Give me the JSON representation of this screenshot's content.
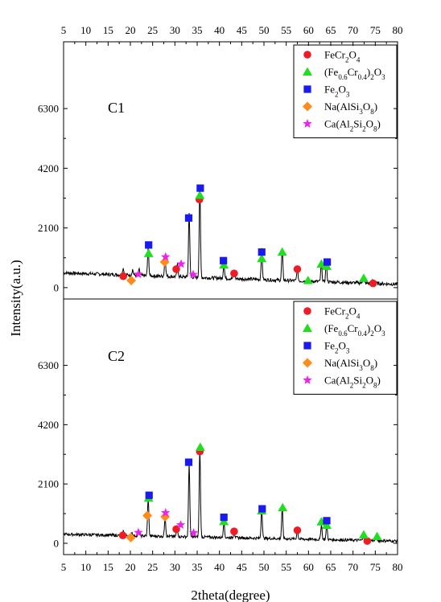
{
  "chart_data": {
    "type": "line",
    "xlabel": "2theta(degree)",
    "ylabel": "Intensity(a.u.)",
    "xlim": [
      5,
      80
    ],
    "ylim": [
      -400,
      8650
    ],
    "x_ticks": [
      "5",
      "10",
      "15",
      "20",
      "25",
      "30",
      "35",
      "40",
      "45",
      "50",
      "55",
      "60",
      "65",
      "70",
      "75",
      "80"
    ],
    "y_ticks": [
      "0",
      "2100",
      "4200",
      "6300"
    ],
    "legend_position": "top-right",
    "phases": [
      {
        "key": "fecr2o4",
        "marker": "circle",
        "color": "#ee1c24",
        "label_parts": [
          {
            "t": "FeCr"
          },
          {
            "t": "2",
            "s": "sub"
          },
          {
            "t": "O"
          },
          {
            "t": "4",
            "s": "sub"
          }
        ]
      },
      {
        "key": "fecr",
        "marker": "triangle",
        "color": "#22dd22",
        "label_parts": [
          {
            "t": "(Fe"
          },
          {
            "t": "0.6",
            "s": "sub"
          },
          {
            "t": "Cr"
          },
          {
            "t": "0.4",
            "s": "sub"
          },
          {
            "t": ")"
          },
          {
            "t": "2",
            "s": "sub"
          },
          {
            "t": "O"
          },
          {
            "t": "3",
            "s": "sub"
          }
        ]
      },
      {
        "key": "fe2o3",
        "marker": "square",
        "color": "#1a1aee",
        "label_parts": [
          {
            "t": "Fe"
          },
          {
            "t": "2",
            "s": "sub"
          },
          {
            "t": "O"
          },
          {
            "t": "3",
            "s": "sub"
          }
        ]
      },
      {
        "key": "nalsi",
        "marker": "diamond",
        "color": "#ff8c1a",
        "label_parts": [
          {
            "t": "Na(AlSi"
          },
          {
            "t": "3",
            "s": "sub"
          },
          {
            "t": "O"
          },
          {
            "t": "8",
            "s": "sub"
          },
          {
            "t": ")"
          }
        ]
      },
      {
        "key": "cal",
        "marker": "star",
        "color": "#ee22ee",
        "label_parts": [
          {
            "t": "Ca(Al"
          },
          {
            "t": "2",
            "s": "sub"
          },
          {
            "t": "Si"
          },
          {
            "t": "2",
            "s": "sub"
          },
          {
            "t": "O"
          },
          {
            "t": "8",
            "s": "sub"
          },
          {
            "t": ")"
          }
        ]
      }
    ],
    "panels": [
      {
        "name": "C1",
        "baseline": {
          "start": 520,
          "end": 120
        },
        "noise": 60,
        "peaks": [
          [
            18.4,
            250
          ],
          [
            20.5,
            200
          ],
          [
            22,
            200
          ],
          [
            24,
            1000
          ],
          [
            27.8,
            700
          ],
          [
            30.6,
            450
          ],
          [
            33.2,
            2300
          ],
          [
            35.6,
            3200
          ],
          [
            41,
            500
          ],
          [
            43.3,
            280
          ],
          [
            49.5,
            1050
          ],
          [
            54.1,
            1100
          ],
          [
            57.5,
            450
          ],
          [
            62.9,
            650
          ],
          [
            64,
            700
          ],
          [
            72.3,
            230
          ],
          [
            74.5,
            120
          ]
        ],
        "markers": [
          {
            "phase": "fecr2o4",
            "x": 18.4,
            "y": 400
          },
          {
            "phase": "fecr2o4",
            "x": 30.3,
            "y": 650
          },
          {
            "phase": "fecr2o4",
            "x": 35.5,
            "y": 3100
          },
          {
            "phase": "fecr2o4",
            "x": 43.3,
            "y": 500
          },
          {
            "phase": "fecr2o4",
            "x": 57.5,
            "y": 650
          },
          {
            "phase": "fecr2o4",
            "x": 74.5,
            "y": 150
          },
          {
            "phase": "fecr",
            "x": 24.1,
            "y": 1200
          },
          {
            "phase": "fecr",
            "x": 35.6,
            "y": 3250
          },
          {
            "phase": "fecr",
            "x": 41,
            "y": 800
          },
          {
            "phase": "fecr",
            "x": 49.5,
            "y": 1020
          },
          {
            "phase": "fecr",
            "x": 54.1,
            "y": 1250
          },
          {
            "phase": "fecr",
            "x": 59.9,
            "y": 250
          },
          {
            "phase": "fecr",
            "x": 62.9,
            "y": 830
          },
          {
            "phase": "fecr",
            "x": 64.1,
            "y": 750
          },
          {
            "phase": "fecr",
            "x": 72.4,
            "y": 330
          },
          {
            "phase": "fe2o3",
            "x": 24.1,
            "y": 1500
          },
          {
            "phase": "fe2o3",
            "x": 33.1,
            "y": 2450
          },
          {
            "phase": "fe2o3",
            "x": 35.7,
            "y": 3500
          },
          {
            "phase": "fe2o3",
            "x": 40.9,
            "y": 950
          },
          {
            "phase": "fe2o3",
            "x": 49.5,
            "y": 1250
          },
          {
            "phase": "fe2o3",
            "x": 64.2,
            "y": 900
          },
          {
            "phase": "nalsi",
            "x": 20.2,
            "y": 250
          },
          {
            "phase": "nalsi",
            "x": 27.7,
            "y": 900
          },
          {
            "phase": "cal",
            "x": 21.8,
            "y": 470
          },
          {
            "phase": "cal",
            "x": 27.9,
            "y": 1080
          },
          {
            "phase": "cal",
            "x": 31.4,
            "y": 830
          },
          {
            "phase": "cal",
            "x": 34.1,
            "y": 460
          }
        ]
      },
      {
        "name": "C2",
        "baseline": {
          "start": 320,
          "end": 80
        },
        "noise": 50,
        "peaks": [
          [
            18.4,
            150
          ],
          [
            20.3,
            130
          ],
          [
            22,
            140
          ],
          [
            24,
            1350
          ],
          [
            27.8,
            700
          ],
          [
            30.5,
            400
          ],
          [
            33.2,
            2650
          ],
          [
            35.6,
            3200
          ],
          [
            41,
            550
          ],
          [
            43.3,
            220
          ],
          [
            49.5,
            1050
          ],
          [
            54.1,
            1100
          ],
          [
            57.5,
            320
          ],
          [
            62.9,
            550
          ],
          [
            64.1,
            520
          ],
          [
            72.3,
            150
          ],
          [
            75.3,
            100
          ]
        ],
        "markers": [
          {
            "phase": "fecr2o4",
            "x": 18.3,
            "y": 280
          },
          {
            "phase": "fecr2o4",
            "x": 30.3,
            "y": 500
          },
          {
            "phase": "fecr2o4",
            "x": 35.6,
            "y": 3250
          },
          {
            "phase": "fecr2o4",
            "x": 43.3,
            "y": 420
          },
          {
            "phase": "fecr2o4",
            "x": 57.5,
            "y": 460
          },
          {
            "phase": "fecr2o4",
            "x": 73.2,
            "y": 80
          },
          {
            "phase": "fecr",
            "x": 24.1,
            "y": 1600
          },
          {
            "phase": "fecr",
            "x": 35.7,
            "y": 3400
          },
          {
            "phase": "fecr",
            "x": 41,
            "y": 770
          },
          {
            "phase": "fecr",
            "x": 49.5,
            "y": 1150
          },
          {
            "phase": "fecr",
            "x": 54.2,
            "y": 1260
          },
          {
            "phase": "fecr",
            "x": 62.9,
            "y": 760
          },
          {
            "phase": "fecr",
            "x": 64.1,
            "y": 640
          },
          {
            "phase": "fecr",
            "x": 72.4,
            "y": 300
          },
          {
            "phase": "fecr",
            "x": 75.4,
            "y": 240
          },
          {
            "phase": "fe2o3",
            "x": 24.2,
            "y": 1700
          },
          {
            "phase": "fe2o3",
            "x": 33.1,
            "y": 2870
          },
          {
            "phase": "fe2o3",
            "x": 41,
            "y": 920
          },
          {
            "phase": "fe2o3",
            "x": 49.6,
            "y": 1220
          },
          {
            "phase": "fe2o3",
            "x": 64.1,
            "y": 800
          },
          {
            "phase": "nalsi",
            "x": 23.8,
            "y": 980
          },
          {
            "phase": "nalsi",
            "x": 20.1,
            "y": 200
          },
          {
            "phase": "nalsi",
            "x": 27.8,
            "y": 940
          },
          {
            "phase": "cal",
            "x": 21.8,
            "y": 380
          },
          {
            "phase": "cal",
            "x": 27.9,
            "y": 1080
          },
          {
            "phase": "cal",
            "x": 31.3,
            "y": 650
          },
          {
            "phase": "cal",
            "x": 34.2,
            "y": 370
          }
        ]
      }
    ]
  }
}
